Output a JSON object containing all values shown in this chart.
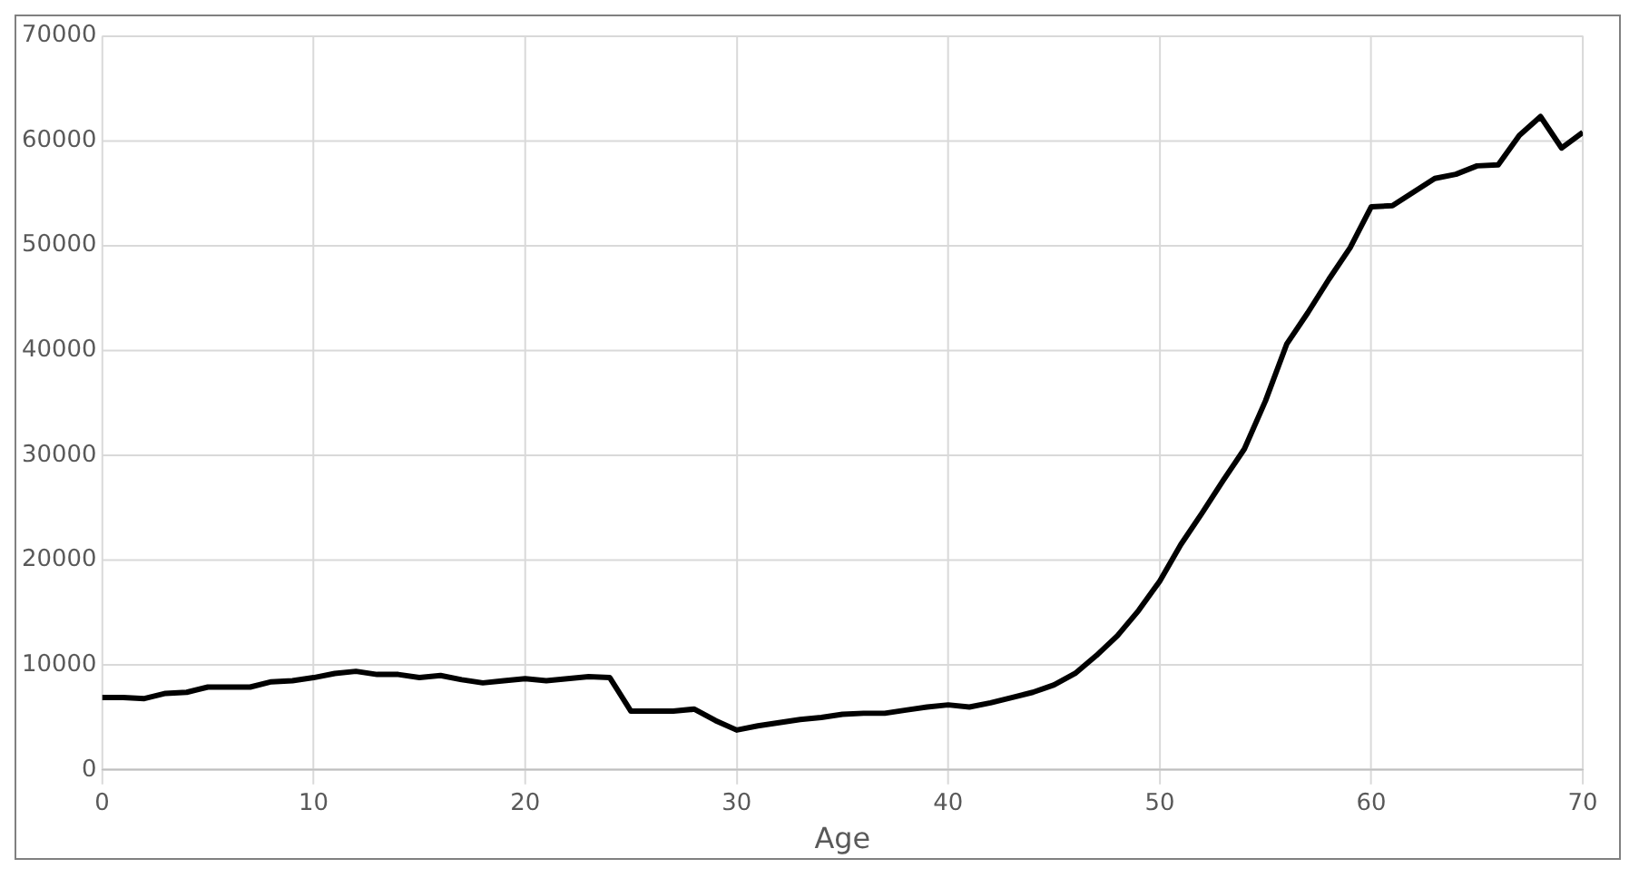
{
  "chart_data": {
    "type": "line",
    "xlabel": "Age",
    "x": [
      0,
      1,
      2,
      3,
      4,
      5,
      6,
      7,
      8,
      9,
      10,
      11,
      12,
      13,
      14,
      15,
      16,
      17,
      18,
      19,
      20,
      21,
      22,
      23,
      24,
      25,
      26,
      27,
      28,
      29,
      30,
      31,
      32,
      33,
      34,
      35,
      36,
      37,
      38,
      39,
      40,
      41,
      42,
      43,
      44,
      45,
      46,
      47,
      48,
      49,
      50,
      51,
      52,
      53,
      54,
      55,
      56,
      57,
      58,
      59,
      60,
      61,
      62,
      63,
      64,
      65,
      66,
      67,
      68,
      69,
      70
    ],
    "series": [
      {
        "color": "#000000",
        "values": [
          6900,
          6900,
          6800,
          7300,
          7400,
          7900,
          7900,
          7900,
          8400,
          8500,
          8800,
          9200,
          9400,
          9100,
          9100,
          8800,
          9000,
          8600,
          8300,
          8500,
          8700,
          8500,
          8700,
          8900,
          8800,
          5600,
          5600,
          5600,
          5800,
          4700,
          3800,
          4200,
          4500,
          4800,
          5000,
          5300,
          5400,
          5400,
          5700,
          6000,
          6200,
          6000,
          6400,
          6900,
          7400,
          8100,
          9200,
          10900,
          12800,
          15200,
          18000,
          21500,
          24500,
          27600,
          30600,
          35200,
          40600,
          43600,
          46800,
          49800,
          53700,
          53800,
          55100,
          56400,
          56800,
          57600,
          57700,
          60500,
          62300,
          59300,
          60800
        ]
      }
    ],
    "xlim": [
      0,
      70
    ],
    "xticks": [
      0,
      10,
      20,
      30,
      40,
      50,
      60,
      70
    ],
    "ylim": [
      0,
      70000
    ],
    "yticks": [
      0,
      10000,
      20000,
      30000,
      40000,
      50000,
      60000,
      70000
    ],
    "grid": true,
    "legend": false,
    "marker": "none",
    "line_style": "solid"
  }
}
